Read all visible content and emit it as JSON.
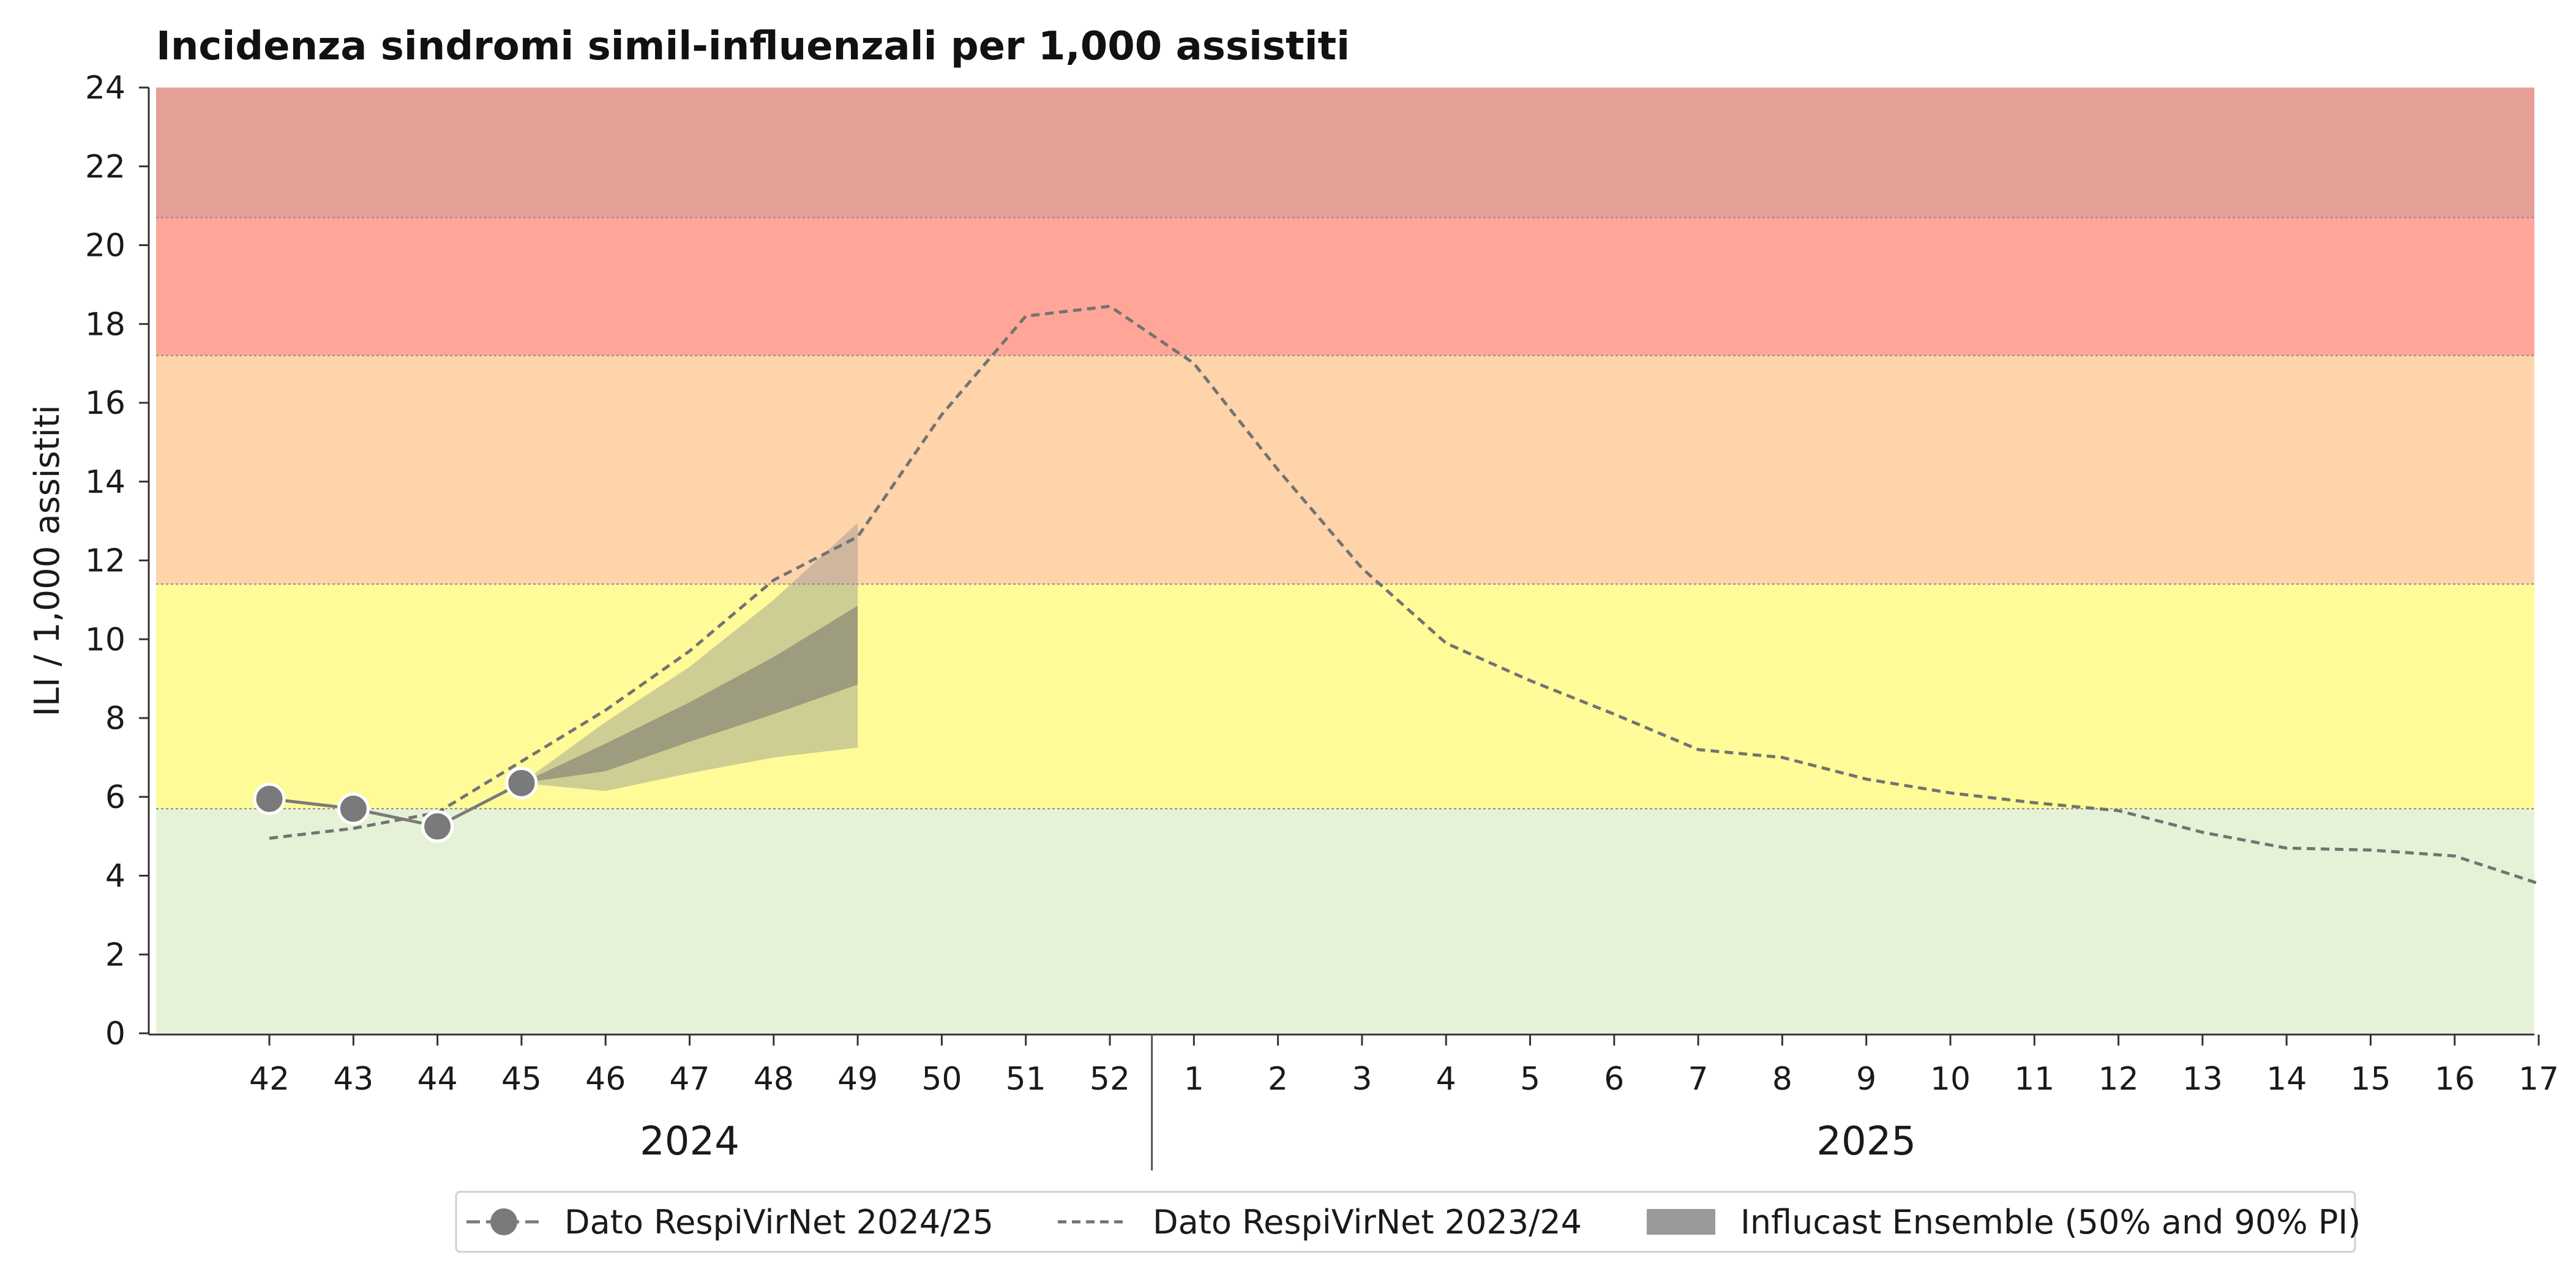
{
  "chart_data": {
    "type": "line",
    "title": "Incidenza sindromi simil-influenzali per 1,000 assistiti",
    "ylabel": "ILI / 1,000 assistiti",
    "xlabel": "",
    "ylim": [
      0,
      24
    ],
    "yticks": [
      "0",
      "2",
      "4",
      "6",
      "8",
      "10",
      "12",
      "14",
      "16",
      "18",
      "20",
      "22",
      "24"
    ],
    "weeks": [
      "42",
      "43",
      "44",
      "45",
      "46",
      "47",
      "48",
      "49",
      "50",
      "51",
      "52",
      "1",
      "2",
      "3",
      "4",
      "5",
      "6",
      "7",
      "8",
      "9",
      "10",
      "11",
      "12",
      "13",
      "14",
      "15",
      "16",
      "17"
    ],
    "years": [
      {
        "label": "2024",
        "first_week": "42",
        "last_week": "52"
      },
      {
        "label": "2025",
        "first_week": "1",
        "last_week": "17"
      }
    ],
    "thresholds": [
      {
        "from": 0,
        "to": 5.7,
        "color": "#e6f2d7"
      },
      {
        "from": 5.7,
        "to": 11.4,
        "color": "#fefb98"
      },
      {
        "from": 11.4,
        "to": 17.2,
        "color": "#ffd4ab"
      },
      {
        "from": 17.2,
        "to": 20.7,
        "color": "#ffa698"
      },
      {
        "from": 20.7,
        "to": 24,
        "color": "#e5a097"
      }
    ],
    "series": [
      {
        "name": "Dato RespiVirNet 2024/25",
        "style": "line-markers",
        "color": "#7a7a7a",
        "x": [
          "42",
          "43",
          "44",
          "45"
        ],
        "values": [
          5.95,
          5.7,
          5.25,
          6.35
        ]
      },
      {
        "name": "Dato RespiVirNet 2023/24",
        "style": "dashed",
        "color": "#737373",
        "x": [
          "42",
          "43",
          "44",
          "45",
          "46",
          "47",
          "48",
          "49",
          "50",
          "51",
          "52",
          "1",
          "2",
          "3",
          "4",
          "5",
          "6",
          "7",
          "8",
          "9",
          "10",
          "11",
          "12",
          "13",
          "14",
          "15",
          "16",
          "17"
        ],
        "values": [
          4.95,
          5.2,
          5.6,
          6.9,
          8.2,
          9.7,
          11.5,
          12.6,
          15.7,
          18.2,
          18.45,
          17.0,
          14.3,
          11.8,
          9.9,
          8.95,
          8.1,
          7.2,
          7.0,
          6.45,
          6.1,
          5.85,
          5.65,
          5.1,
          4.7,
          4.65,
          4.5,
          3.8
        ]
      }
    ],
    "forecast": {
      "name": "Influcast Ensemble (50% and 90% PI)",
      "color": "#8c8c8c",
      "x": [
        "45",
        "46",
        "47",
        "48",
        "49"
      ],
      "pi90_low": [
        6.35,
        6.15,
        6.6,
        7.0,
        7.25
      ],
      "pi90_high": [
        6.35,
        7.9,
        9.3,
        11.0,
        12.95
      ],
      "pi50_low": [
        6.35,
        6.65,
        7.4,
        8.1,
        8.85
      ],
      "pi50_high": [
        6.35,
        7.35,
        8.4,
        9.55,
        10.85
      ]
    },
    "legend": {
      "position": "bottom-center",
      "items": [
        {
          "label": "Dato RespiVirNet 2024/25",
          "kind": "line-marker"
        },
        {
          "label": "Dato RespiVirNet 2023/24",
          "kind": "dashed"
        },
        {
          "label": "Influcast Ensemble (50% and 90% PI)",
          "kind": "patch"
        }
      ]
    },
    "grid": false
  }
}
